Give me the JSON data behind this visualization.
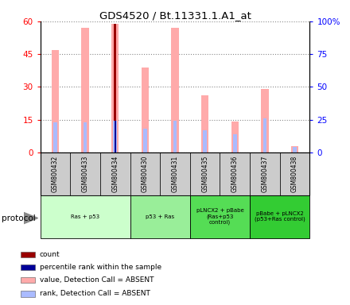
{
  "title": "GDS4520 / Bt.11331.1.A1_at",
  "samples": [
    "GSM800432",
    "GSM800433",
    "GSM800434",
    "GSM800430",
    "GSM800431",
    "GSM800435",
    "GSM800436",
    "GSM800437",
    "GSM800438"
  ],
  "value_absent": [
    47,
    57,
    59,
    39,
    57,
    26,
    14,
    29,
    3
  ],
  "rank_absent": [
    23,
    23,
    24,
    18,
    24,
    17,
    14,
    26,
    4
  ],
  "count_value": [
    0,
    0,
    59,
    0,
    0,
    0,
    0,
    0,
    0
  ],
  "percentile_rank": [
    0,
    0,
    24,
    0,
    0,
    0,
    0,
    0,
    0
  ],
  "protocols": [
    {
      "label": "Ras + p53",
      "start": 0,
      "end": 3,
      "color": "#ccffcc"
    },
    {
      "label": "p53 + Ras",
      "start": 3,
      "end": 5,
      "color": "#99ee99"
    },
    {
      "label": "pLNCX2 + pBabe\n(Ras+p53\ncontrol)",
      "start": 5,
      "end": 7,
      "color": "#55dd55"
    },
    {
      "label": "pBabe + pLNCX2\n(p53+Ras control)",
      "start": 7,
      "end": 9,
      "color": "#33cc33"
    }
  ],
  "ylim_left": [
    0,
    60
  ],
  "ylim_right": [
    0,
    100
  ],
  "yticks_left": [
    0,
    15,
    30,
    45,
    60
  ],
  "ytick_labels_left": [
    "0",
    "15",
    "30",
    "45",
    "60"
  ],
  "yticks_right": [
    0,
    25,
    50,
    75,
    100
  ],
  "ytick_labels_right": [
    "0",
    "25",
    "50",
    "75",
    "100%"
  ],
  "value_absent_color": "#ffaaaa",
  "rank_absent_color": "#aabbff",
  "count_color": "#990000",
  "percentile_color": "#000099",
  "grid_color": "#888888",
  "sample_bg_color": "#cccccc",
  "protocol_label": "protocol",
  "legend_items": [
    {
      "color": "#990000",
      "label": "count"
    },
    {
      "color": "#000099",
      "label": "percentile rank within the sample"
    },
    {
      "color": "#ffaaaa",
      "label": "value, Detection Call = ABSENT"
    },
    {
      "color": "#aabbff",
      "label": "rank, Detection Call = ABSENT"
    }
  ]
}
